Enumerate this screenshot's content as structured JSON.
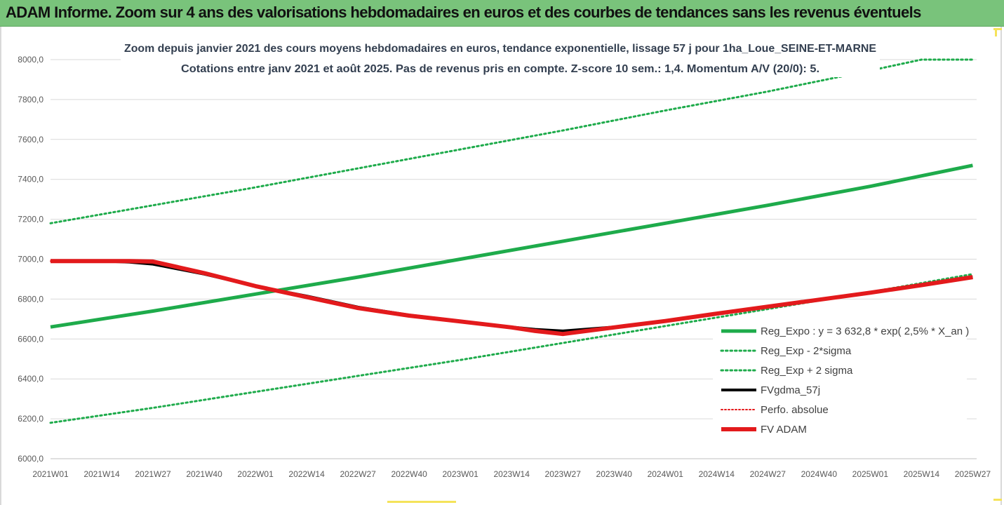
{
  "header": {
    "title": "ADAM Informe. Zoom sur 4 ans des valorisations hebdomadaires en euros et des courbes de tendances sans les revenus éventuels"
  },
  "chart_data": {
    "type": "line",
    "title": "Zoom depuis janvier 2021 des cours moyens hebdomadaires en euros, tendance exponentielle, lissage 57 j pour 1ha_Loue_SEINE-ET-MARNE",
    "subtitle": "Cotations entre janv 2021 et août 2025.  Pas de revenus pris en compte. Z-score 10 sem.: 1,4. Momentum A/V (20/0): 5.",
    "xlabel": "",
    "ylabel": "",
    "ylim": [
      6000,
      8000
    ],
    "grid": "horizontal",
    "legend_position": "bottom-right",
    "x_range_weeks": [
      0,
      235
    ],
    "x_ticks": [
      {
        "label": "2021W01",
        "week": 0
      },
      {
        "label": "2021W14",
        "week": 13
      },
      {
        "label": "2021W27",
        "week": 26
      },
      {
        "label": "2021W40",
        "week": 39
      },
      {
        "label": "2022W01",
        "week": 52
      },
      {
        "label": "2022W14",
        "week": 65
      },
      {
        "label": "2022W27",
        "week": 78
      },
      {
        "label": "2022W40",
        "week": 91
      },
      {
        "label": "2023W01",
        "week": 104
      },
      {
        "label": "2023W14",
        "week": 117
      },
      {
        "label": "2023W27",
        "week": 130
      },
      {
        "label": "2023W40",
        "week": 143
      },
      {
        "label": "2024W01",
        "week": 156
      },
      {
        "label": "2024W14",
        "week": 169
      },
      {
        "label": "2024W27",
        "week": 182
      },
      {
        "label": "2024W40",
        "week": 195
      },
      {
        "label": "2025W01",
        "week": 208
      },
      {
        "label": "2025W14",
        "week": 221
      },
      {
        "label": "2025W27",
        "week": 234
      }
    ],
    "y_ticks": [
      "6000,0",
      "6200,0",
      "6400,0",
      "6600,0",
      "6800,0",
      "7000,0",
      "7200,0",
      "7400,0",
      "7600,0",
      "7800,0",
      "8000,0"
    ],
    "y_tick_values": [
      6000,
      6200,
      6400,
      6600,
      6800,
      7000,
      7200,
      7400,
      7600,
      7800,
      8000
    ],
    "series": [
      {
        "name": "Reg_Expo : y = 3 632,8 * exp( 2,5% *  X_an )",
        "color": "#1eab4b",
        "style": "solid",
        "width": 5,
        "x": [
          0,
          26,
          52,
          78,
          104,
          130,
          156,
          182,
          208,
          234
        ],
        "y": [
          6660,
          6740,
          6825,
          6910,
          7000,
          7090,
          7180,
          7270,
          7365,
          7470
        ]
      },
      {
        "name": "Reg_Exp - 2*sigma",
        "color": "#1eab4b",
        "style": "dotted",
        "width": 3,
        "x": [
          0,
          26,
          52,
          78,
          104,
          130,
          156,
          182,
          208,
          234
        ],
        "y": [
          6180,
          6255,
          6335,
          6415,
          6495,
          6580,
          6665,
          6750,
          6835,
          6925
        ]
      },
      {
        "name": "Reg_Exp + 2 sigma",
        "color": "#1eab4b",
        "style": "dotted",
        "width": 3,
        "x": [
          0,
          26,
          52,
          78,
          104,
          130,
          156,
          182,
          208,
          221,
          234
        ],
        "y": [
          7180,
          7270,
          7360,
          7455,
          7550,
          7645,
          7745,
          7840,
          7945,
          8000,
          8000
        ]
      },
      {
        "name": "FVgdma_57j",
        "color": "#000000",
        "style": "solid",
        "width": 4,
        "x": [
          0,
          13,
          20,
          26,
          39,
          52,
          65,
          78,
          91,
          104,
          117,
          123,
          130,
          143,
          156,
          169,
          182,
          195,
          208,
          221,
          234
        ],
        "y": [
          6990,
          6990,
          6985,
          6975,
          6925,
          6865,
          6815,
          6760,
          6720,
          6690,
          6660,
          6648,
          6640,
          6660,
          6690,
          6725,
          6760,
          6795,
          6830,
          6870,
          6910
        ]
      },
      {
        "name": "Perfo. absolue",
        "color": "#e31a1c",
        "style": "dotted",
        "width": 2,
        "x": [
          0,
          13,
          20,
          26,
          39,
          52,
          65,
          78,
          91,
          104,
          117,
          123,
          130,
          143,
          156,
          169,
          182,
          195,
          208,
          221,
          234
        ],
        "y": [
          6990,
          6990,
          6990,
          6988,
          6930,
          6865,
          6810,
          6755,
          6717,
          6688,
          6658,
          6640,
          6625,
          6658,
          6690,
          6727,
          6762,
          6797,
          6832,
          6870,
          6910
        ]
      },
      {
        "name": "FV ADAM",
        "color": "#e31a1c",
        "style": "solid",
        "width": 6,
        "x": [
          0,
          13,
          20,
          26,
          39,
          52,
          65,
          78,
          91,
          104,
          117,
          123,
          130,
          143,
          156,
          169,
          182,
          195,
          208,
          221,
          234
        ],
        "y": [
          6990,
          6990,
          6990,
          6988,
          6930,
          6865,
          6810,
          6755,
          6717,
          6688,
          6658,
          6640,
          6625,
          6658,
          6690,
          6727,
          6762,
          6797,
          6832,
          6870,
          6910
        ]
      }
    ]
  }
}
